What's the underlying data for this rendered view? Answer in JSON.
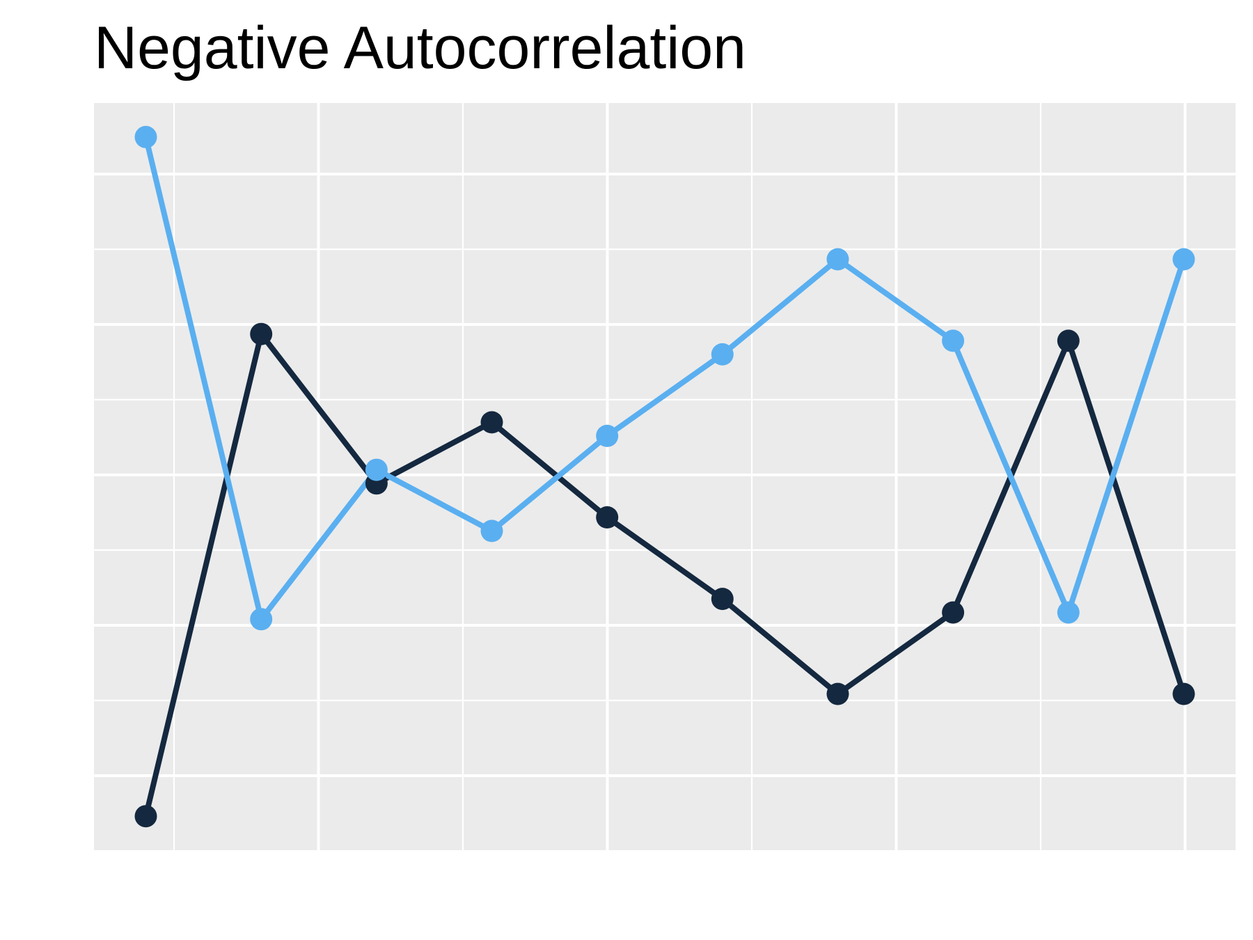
{
  "chart_data": {
    "type": "line",
    "title": "Negative Autocorrelation",
    "xlabel": "",
    "ylabel": "",
    "grid": true,
    "x": [
      1,
      2,
      3,
      4,
      5,
      6,
      7,
      8,
      9,
      10
    ],
    "xlim": [
      0.55,
      10.45
    ],
    "ylim": [
      -0.05,
      1.05
    ],
    "series": [
      {
        "color": "#14283f",
        "values": [
          0.0,
          0.71,
          0.49,
          0.58,
          0.44,
          0.32,
          0.18,
          0.3,
          0.7,
          0.18
        ]
      },
      {
        "color": "#5aaff0",
        "values": [
          1.0,
          0.29,
          0.51,
          0.42,
          0.56,
          0.68,
          0.82,
          0.7,
          0.3,
          0.82
        ]
      }
    ]
  },
  "colors": {
    "panel_bg": "#ebebeb",
    "grid_major": "#ffffff",
    "grid_minor": "#f7f7f7"
  }
}
